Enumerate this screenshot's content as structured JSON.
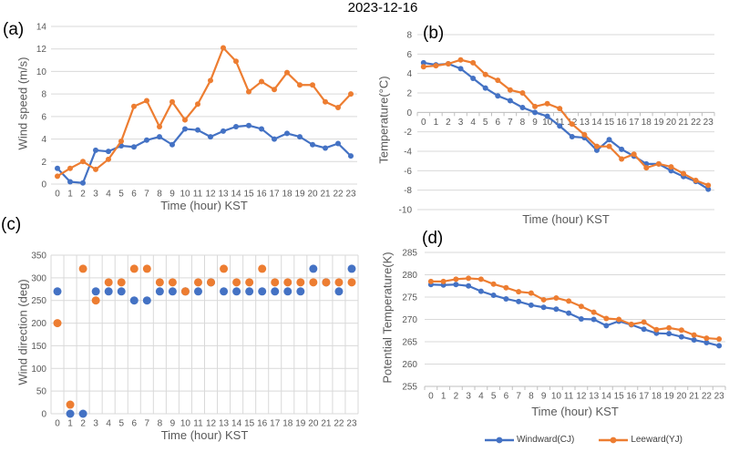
{
  "title": "2023-12-16",
  "colors": {
    "windward": "#4472C4",
    "leeward": "#ED7D31",
    "gridline": "#D9D9D9",
    "axis_line": "#BFBFBF",
    "axis_text": "#595959"
  },
  "legend": {
    "items": [
      {
        "label": "Windward(CJ)",
        "color": "#4472C4"
      },
      {
        "label": "Leeward(YJ)",
        "color": "#ED7D31"
      }
    ]
  },
  "chart_data": [
    {
      "id": "a",
      "panel_label": "(a)",
      "type": "line",
      "title": "",
      "xlabel": "Time (hour) KST",
      "ylabel": "Wind speed (m/s)",
      "ylim": [
        0,
        14
      ],
      "ytick_step": 2,
      "grid": "horizontal",
      "x_axis_at": "bottom",
      "axis_line": false,
      "categories": [
        0,
        1,
        2,
        3,
        4,
        5,
        6,
        7,
        8,
        9,
        10,
        11,
        12,
        13,
        14,
        15,
        16,
        17,
        18,
        19,
        20,
        21,
        22,
        23
      ],
      "series": [
        {
          "name": "Windward(CJ)",
          "color": "#4472C4",
          "values": [
            1.4,
            0.2,
            0.1,
            3.0,
            2.9,
            3.4,
            3.3,
            3.9,
            4.2,
            3.5,
            4.9,
            4.8,
            4.2,
            4.7,
            5.1,
            5.2,
            4.9,
            4.0,
            4.5,
            4.2,
            3.5,
            3.2,
            3.6,
            2.5
          ]
        },
        {
          "name": "Leeward(YJ)",
          "color": "#ED7D31",
          "values": [
            0.7,
            1.4,
            2.0,
            1.3,
            2.2,
            3.8,
            6.9,
            7.4,
            5.1,
            7.3,
            5.7,
            7.1,
            9.2,
            12.1,
            10.9,
            8.2,
            9.1,
            8.4,
            9.9,
            8.8,
            8.8,
            7.3,
            6.8,
            8.0
          ]
        }
      ]
    },
    {
      "id": "b",
      "panel_label": "(b)",
      "type": "line",
      "title": "",
      "xlabel": "Time (hour) KST",
      "ylabel": "Temperature(°C)",
      "ylim": [
        -10,
        8
      ],
      "ytick_step": 2,
      "grid": "horizontal",
      "x_axis_at": "zero",
      "axis_line": true,
      "categories": [
        0,
        1,
        2,
        3,
        4,
        5,
        6,
        7,
        8,
        9,
        10,
        11,
        12,
        13,
        14,
        15,
        16,
        17,
        18,
        19,
        20,
        21,
        22,
        23
      ],
      "series": [
        {
          "name": "Windward(CJ)",
          "color": "#4472C4",
          "values": [
            5.1,
            4.9,
            5.0,
            4.5,
            3.5,
            2.5,
            1.7,
            1.2,
            0.5,
            0.0,
            -0.4,
            -1.4,
            -2.5,
            -2.6,
            -3.9,
            -2.8,
            -3.8,
            -4.5,
            -5.3,
            -5.3,
            -6.0,
            -6.6,
            -7.1,
            -7.9
          ]
        },
        {
          "name": "Leeward(YJ)",
          "color": "#ED7D31",
          "values": [
            4.7,
            4.8,
            5.0,
            5.4,
            5.1,
            3.9,
            3.3,
            2.3,
            2.0,
            0.6,
            0.9,
            0.4,
            -1.2,
            -2.3,
            -3.5,
            -3.5,
            -4.8,
            -4.3,
            -5.7,
            -5.3,
            -5.6,
            -6.3,
            -7.0,
            -7.5
          ]
        }
      ]
    },
    {
      "id": "c",
      "panel_label": "(c)",
      "type": "scatter",
      "title": "",
      "xlabel": "Time (hour) KST",
      "ylabel": "Wind direction (deg)",
      "ylim": [
        0,
        350
      ],
      "ytick_step": 50,
      "grid": "both",
      "x_axis_at": "bottom",
      "axis_line": false,
      "categories": [
        0,
        1,
        2,
        3,
        4,
        5,
        6,
        7,
        8,
        9,
        10,
        11,
        12,
        13,
        14,
        15,
        16,
        17,
        18,
        19,
        20,
        21,
        22,
        23
      ],
      "series": [
        {
          "name": "Windward(CJ)",
          "color": "#4472C4",
          "values": [
            270,
            0,
            0,
            270,
            270,
            270,
            250,
            250,
            270,
            270,
            270,
            270,
            290,
            270,
            270,
            270,
            270,
            270,
            270,
            270,
            320,
            290,
            270,
            320
          ]
        },
        {
          "name": "Leeward(YJ)",
          "color": "#ED7D31",
          "values": [
            200,
            20,
            320,
            250,
            290,
            290,
            320,
            320,
            290,
            290,
            270,
            290,
            290,
            320,
            290,
            290,
            320,
            290,
            290,
            290,
            290,
            290,
            290,
            290
          ]
        }
      ]
    },
    {
      "id": "d",
      "panel_label": "(d)",
      "type": "line",
      "title": "",
      "xlabel": "Time (hour) KST",
      "ylabel": "Potential Temperature(K)",
      "ylim": [
        255,
        285
      ],
      "ytick_step": 5,
      "grid": "horizontal",
      "x_axis_at": "bottom",
      "axis_line": true,
      "categories": [
        0,
        1,
        2,
        3,
        4,
        5,
        6,
        7,
        8,
        9,
        10,
        11,
        12,
        13,
        14,
        15,
        16,
        17,
        18,
        19,
        20,
        21,
        22,
        23
      ],
      "series": [
        {
          "name": "Windward(CJ)",
          "color": "#4472C4",
          "values": [
            277.8,
            277.7,
            277.8,
            277.5,
            276.3,
            275.4,
            274.6,
            274.0,
            273.2,
            272.7,
            272.3,
            271.4,
            270.1,
            270.0,
            268.6,
            269.6,
            268.8,
            267.8,
            266.9,
            266.8,
            266.1,
            265.4,
            264.8,
            264.1
          ]
        },
        {
          "name": "Leeward(YJ)",
          "color": "#ED7D31",
          "values": [
            278.5,
            278.5,
            279.0,
            279.2,
            279.0,
            277.9,
            277.1,
            276.2,
            275.9,
            274.4,
            274.8,
            274.1,
            272.9,
            271.6,
            270.2,
            270.0,
            268.9,
            269.4,
            267.7,
            268.1,
            267.6,
            266.5,
            265.8,
            265.6
          ]
        }
      ]
    }
  ]
}
